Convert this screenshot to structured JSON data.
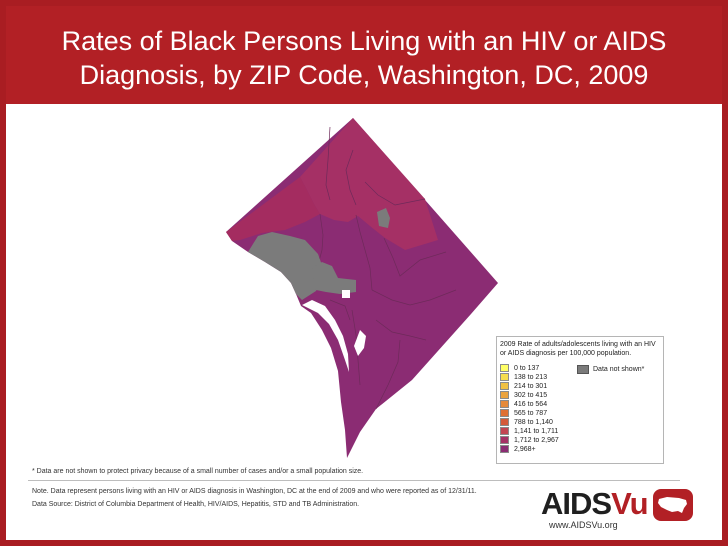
{
  "title": "Rates of Black Persons Living with an HIV or AIDS Diagnosis, by ZIP Code, Washington, DC, 2009",
  "colors": {
    "brand_red": "#b22025",
    "map_dominant": "#8b2c73",
    "map_north": "#a53065",
    "map_northwest": "#a42c60",
    "data_not_shown": "#7b7b7b"
  },
  "legend": {
    "title": "2009 Rate of adults/adolescents living with an HIV or AIDS diagnosis per 100,000 population.",
    "items": [
      {
        "label": "0 to 137",
        "color": "#ffff66"
      },
      {
        "label": "138 to 213",
        "color": "#f5dd4e"
      },
      {
        "label": "214 to 301",
        "color": "#f0c043"
      },
      {
        "label": "302 to 415",
        "color": "#eba33d"
      },
      {
        "label": "416 to 564",
        "color": "#e58a3a"
      },
      {
        "label": "565 to 787",
        "color": "#df7034"
      },
      {
        "label": "788 to 1,140",
        "color": "#d55a3a"
      },
      {
        "label": "1,141 to 1,711",
        "color": "#c24552"
      },
      {
        "label": "1,712 to 2,967",
        "color": "#a53065"
      },
      {
        "label": "2,968+",
        "color": "#8b2c73"
      }
    ],
    "not_shown_label": "Data not shown*"
  },
  "footnote": "* Data are not shown to protect privacy because of a small number of cases and/or a small population size.",
  "note": "Note. Data represent persons living with an HIV or AIDS diagnosis in Washington, DC at the end of 2009 and who were reported as of 12/31/11.",
  "source": "Data Source: District of Columbia Department of Health, HIV/AIDS, Hepatitis, STD and TB Administration.",
  "logo": {
    "text_aids": "AIDS",
    "text_vu": "Vu",
    "url": "www.AIDSVu.org"
  }
}
